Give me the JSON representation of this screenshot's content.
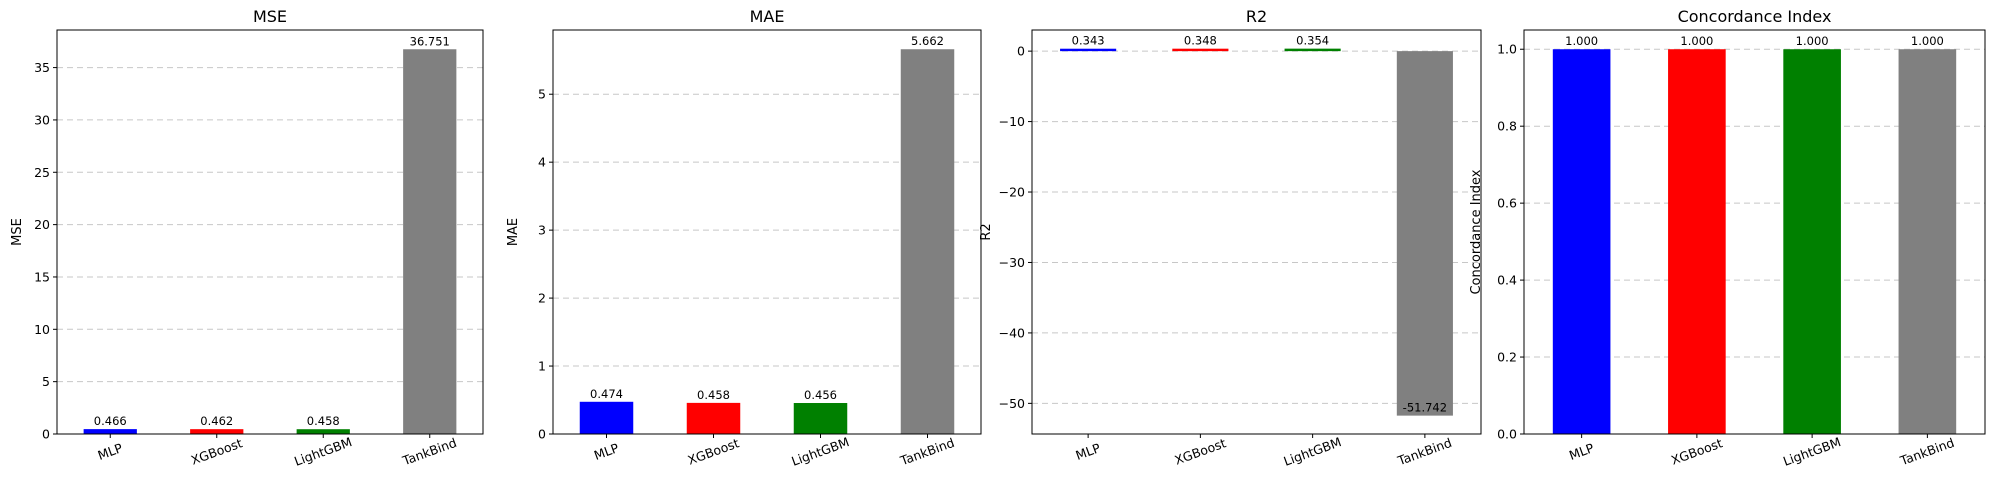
{
  "chart_data": [
    {
      "type": "bar",
      "title": "MSE",
      "xlabel": "",
      "ylabel": "MSE",
      "categories": [
        "MLP",
        "XGBoost",
        "LightGBM",
        "TankBind"
      ],
      "values": [
        0.466,
        0.462,
        0.458,
        36.751
      ],
      "value_labels": [
        "0.466",
        "0.462",
        "0.458",
        "36.751"
      ],
      "colors": [
        "#0000ff",
        "#ff0000",
        "#008000",
        "#808080"
      ],
      "ylim": [
        0,
        38.59
      ],
      "yticks": [
        0,
        5,
        10,
        15,
        20,
        25,
        30,
        35
      ],
      "grid": "y-dashed"
    },
    {
      "type": "bar",
      "title": "MAE",
      "xlabel": "",
      "ylabel": "MAE",
      "categories": [
        "MLP",
        "XGBoost",
        "LightGBM",
        "TankBind"
      ],
      "values": [
        0.474,
        0.458,
        0.456,
        5.662
      ],
      "value_labels": [
        "0.474",
        "0.458",
        "0.456",
        "5.662"
      ],
      "colors": [
        "#0000ff",
        "#ff0000",
        "#008000",
        "#808080"
      ],
      "ylim": [
        0,
        5.945
      ],
      "yticks": [
        0,
        1,
        2,
        3,
        4,
        5
      ],
      "grid": "y-dashed"
    },
    {
      "type": "bar",
      "title": "R2",
      "xlabel": "",
      "ylabel": "R2",
      "categories": [
        "MLP",
        "XGBoost",
        "LightGBM",
        "TankBind"
      ],
      "values": [
        0.343,
        0.348,
        0.354,
        -51.742
      ],
      "value_labels": [
        "0.343",
        "0.348",
        "0.354",
        "-51.742"
      ],
      "colors": [
        "#0000ff",
        "#ff0000",
        "#008000",
        "#808080"
      ],
      "ylim": [
        -54.35,
        3.0
      ],
      "yticks": [
        -50,
        -40,
        -30,
        -20,
        -10,
        0
      ],
      "grid": "y-dashed"
    },
    {
      "type": "bar",
      "title": "Concordance Index",
      "xlabel": "",
      "ylabel": "Concordance Index",
      "categories": [
        "MLP",
        "XGBoost",
        "LightGBM",
        "TankBind"
      ],
      "values": [
        1.0,
        1.0,
        1.0,
        1.0
      ],
      "value_labels": [
        "1.000",
        "1.000",
        "1.000",
        "1.000"
      ],
      "colors": [
        "#0000ff",
        "#ff0000",
        "#008000",
        "#808080"
      ],
      "ylim": [
        0,
        1.05
      ],
      "yticks": [
        0.0,
        0.2,
        0.4,
        0.6,
        0.8,
        1.0
      ],
      "grid": "y-dashed"
    }
  ]
}
